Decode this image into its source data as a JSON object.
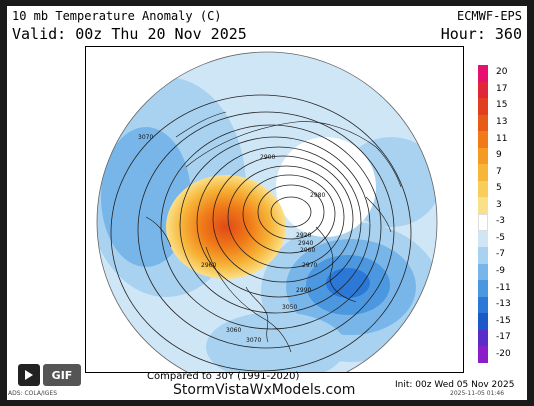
{
  "header": {
    "title": "10 mb Temperature Anomaly (C)",
    "valid": "Valid: 00z Thu 20 Nov 2025",
    "model": "ECMWF-EPS",
    "hour": "Hour: 360"
  },
  "legend": {
    "levels": [
      {
        "label": "20",
        "color": "#e8106e"
      },
      {
        "label": "17",
        "color": "#e02638"
      },
      {
        "label": "15",
        "color": "#e04020"
      },
      {
        "label": "13",
        "color": "#e85a18"
      },
      {
        "label": "11",
        "color": "#f07a18"
      },
      {
        "label": "9",
        "color": "#f59a22"
      },
      {
        "label": "7",
        "color": "#f7b63a"
      },
      {
        "label": "5",
        "color": "#f8cd5a"
      },
      {
        "label": "3",
        "color": "#fbe08a"
      },
      {
        "label": "-3",
        "color": "#ffffff"
      },
      {
        "label": "-5",
        "color": "#cfe6f6"
      },
      {
        "label": "-7",
        "color": "#a8d2f0"
      },
      {
        "label": "-9",
        "color": "#78b6ea"
      },
      {
        "label": "-11",
        "color": "#4c98e0"
      },
      {
        "label": "-13",
        "color": "#2c78d6"
      },
      {
        "label": "-15",
        "color": "#1c58c8"
      },
      {
        "label": "-17",
        "color": "#5a2cc8"
      },
      {
        "label": "-20",
        "color": "#8a1ec8"
      }
    ]
  },
  "map": {
    "contour_labels": [
      "3070",
      "2900",
      "2920",
      "2940",
      "2960",
      "2980",
      "2970",
      "2990",
      "3050",
      "3060",
      "3070",
      "2960"
    ]
  },
  "footer": {
    "compared": "Compared to 30Y (1991-2020)",
    "site": "StormVistaWxModels.com",
    "init": "Init: 00z Wed 05 Nov 2025",
    "stamp": "2025-11-05 01:46",
    "data_source": "ADS: COLA/IGES"
  },
  "controls": {
    "play_icon": "play-icon",
    "gif_label": "GIF"
  },
  "colors": {
    "warm_core": "#e8722a",
    "cold_ring": "#4c98e0",
    "ocean_blue": "#cfe6f6"
  }
}
